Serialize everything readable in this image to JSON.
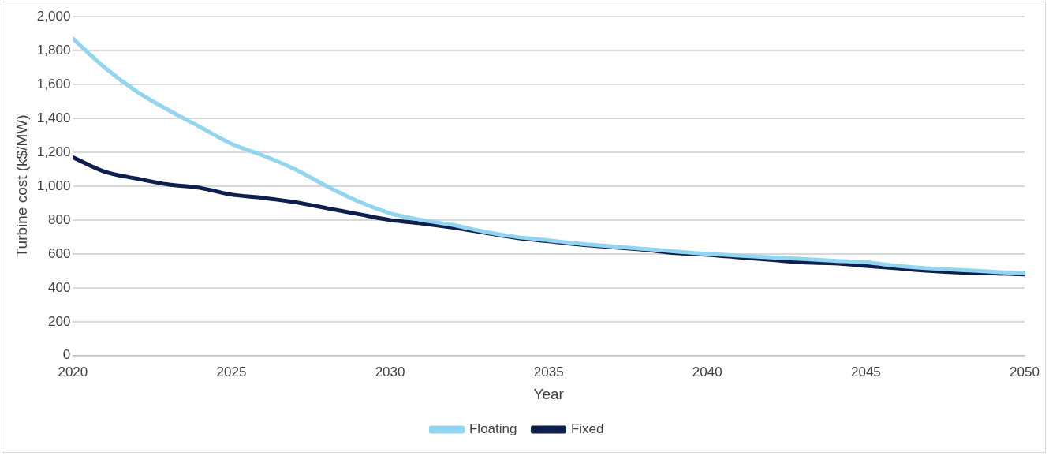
{
  "chart_data": {
    "type": "line",
    "xlabel": "Year",
    "ylabel": "Turbine cost (k$/MW)",
    "x": [
      2020,
      2021,
      2022,
      2023,
      2024,
      2025,
      2026,
      2027,
      2028,
      2029,
      2030,
      2031,
      2032,
      2033,
      2034,
      2035,
      2036,
      2037,
      2038,
      2039,
      2040,
      2041,
      2042,
      2043,
      2044,
      2045,
      2046,
      2047,
      2048,
      2049,
      2050
    ],
    "xlim": [
      2020,
      2050
    ],
    "xticks": [
      2020,
      2025,
      2030,
      2035,
      2040,
      2045,
      2050
    ],
    "ylim": [
      0,
      2000
    ],
    "yticks": [
      {
        "value": 0,
        "label": "0"
      },
      {
        "value": 200,
        "label": "200"
      },
      {
        "value": 400,
        "label": "400"
      },
      {
        "value": 600,
        "label": "600"
      },
      {
        "value": 800,
        "label": "800"
      },
      {
        "value": 1000,
        "label": "1,000"
      },
      {
        "value": 1200,
        "label": "1,200"
      },
      {
        "value": 1400,
        "label": "1,400"
      },
      {
        "value": 1600,
        "label": "1,600"
      },
      {
        "value": 1800,
        "label": "1,800"
      },
      {
        "value": 2000,
        "label": "2,000"
      }
    ],
    "series": [
      {
        "name": "Floating",
        "color": "#92d5f0",
        "values": [
          1870,
          1700,
          1560,
          1450,
          1350,
          1250,
          1180,
          1100,
          1000,
          910,
          840,
          800,
          770,
          730,
          700,
          680,
          660,
          645,
          630,
          615,
          600,
          590,
          580,
          570,
          560,
          550,
          530,
          515,
          505,
          495,
          485
        ]
      },
      {
        "name": "Fixed",
        "color": "#0e1f4d",
        "values": [
          1170,
          1085,
          1045,
          1010,
          990,
          950,
          930,
          905,
          870,
          835,
          800,
          780,
          755,
          725,
          695,
          675,
          655,
          640,
          625,
          605,
          595,
          580,
          565,
          550,
          545,
          530,
          515,
          500,
          490,
          485,
          480
        ]
      }
    ],
    "grid": "y",
    "legend": "bottom",
    "marker": "none",
    "line_style": "solid"
  }
}
